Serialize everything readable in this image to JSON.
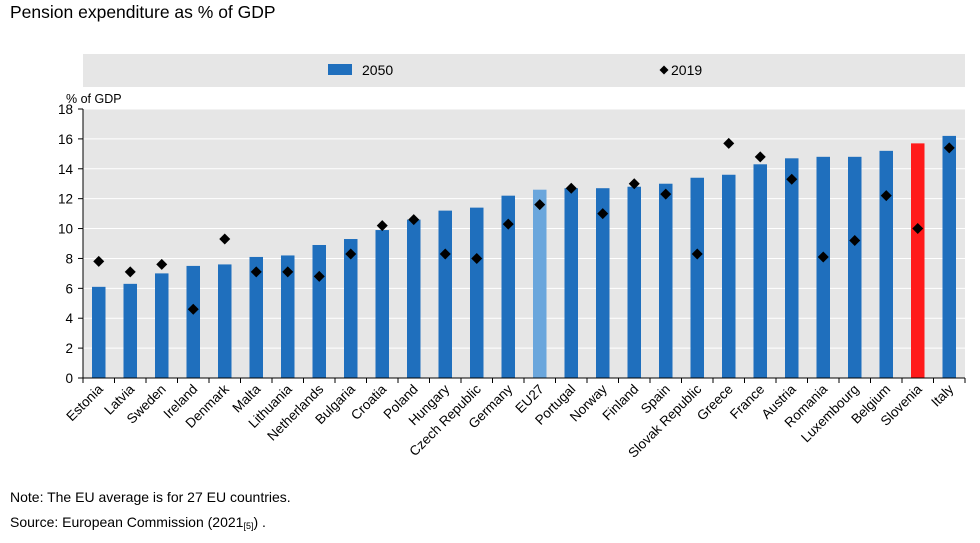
{
  "title": "Pension expenditure as % of GDP",
  "colors": {
    "bar": "#1f6fbd",
    "eu_bar": "#6aa6dc",
    "highlight_bar": "#ff1a1a",
    "marker": "#000000",
    "legend_bg": "#e6e6e6",
    "gridline": "#ffffff"
  },
  "chart_data": {
    "type": "bar",
    "ylabel": "% of GDP",
    "ylim": [
      0,
      18
    ],
    "yticks": [
      "0",
      "2",
      "4",
      "6",
      "8",
      "10",
      "12",
      "14",
      "16",
      "18"
    ],
    "categories": [
      "Estonia",
      "Latvia",
      "Sweden",
      "Ireland",
      "Denmark",
      "Malta",
      "Lithuania",
      "Netherlands",
      "Bulgaria",
      "Croatia",
      "Poland",
      "Hungary",
      "Czech Republic",
      "Germany",
      "EU27",
      "Portugal",
      "Norway",
      "Finland",
      "Spain",
      "Slovak Republic",
      "Greece",
      "France",
      "Austria",
      "Romania",
      "Luxembourg",
      "Belgium",
      "Slovenia",
      "Italy"
    ],
    "series": [
      {
        "name": "2050",
        "kind": "bar",
        "values": [
          6.1,
          6.3,
          7.0,
          7.5,
          7.6,
          8.1,
          8.2,
          8.9,
          9.3,
          9.9,
          10.6,
          11.2,
          11.4,
          12.2,
          12.6,
          12.7,
          12.7,
          12.8,
          13.0,
          13.4,
          13.6,
          14.3,
          14.7,
          14.8,
          14.8,
          15.2,
          15.7,
          16.2
        ]
      },
      {
        "name": "2019",
        "kind": "marker",
        "values": [
          7.8,
          7.1,
          7.6,
          4.6,
          9.3,
          7.1,
          7.1,
          6.8,
          8.3,
          10.2,
          10.6,
          8.3,
          8.0,
          10.3,
          11.6,
          12.7,
          11.0,
          13.0,
          12.3,
          8.3,
          15.7,
          14.8,
          13.3,
          8.1,
          9.2,
          12.2,
          10.0,
          15.4
        ]
      }
    ],
    "special_bars": {
      "EU27": "eu_bar",
      "Slovenia": "highlight_bar"
    },
    "legend": {
      "items": [
        "2050",
        "2019"
      ],
      "placement": "top"
    }
  },
  "notes": {
    "note": "Note: The EU average is for 27 EU countries.",
    "source_prefix": "Source: European Commission (2021",
    "source_ref": "[5]",
    "source_suffix": ") ."
  }
}
